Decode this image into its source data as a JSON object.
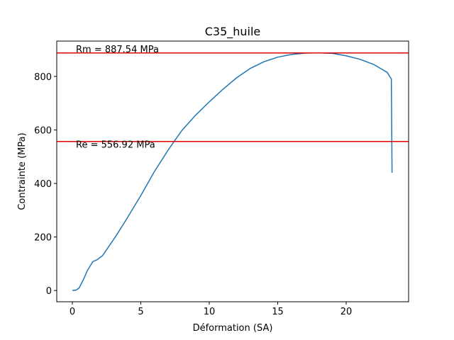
{
  "chart_data": {
    "type": "line",
    "title": "C35_huile",
    "x_label": "Déformation (SA)",
    "y_label": "Contrainte (MPa)",
    "x": [
      0,
      0.3,
      0.5,
      0.8,
      1.1,
      1.5,
      1.8,
      2.2,
      2.6,
      3.2,
      4,
      5,
      6,
      7,
      7.5,
      8,
      9,
      10,
      11,
      12,
      13,
      14,
      15,
      16,
      17,
      18,
      19,
      20,
      21,
      22,
      23,
      23.3,
      23.35
    ],
    "values": [
      0,
      2,
      10,
      40,
      75,
      108,
      115,
      130,
      160,
      205,
      270,
      355,
      445,
      525,
      562,
      598,
      655,
      705,
      752,
      795,
      830,
      855,
      872,
      882,
      887,
      888,
      886,
      877,
      864,
      845,
      815,
      790,
      440
    ],
    "color": "#1f77b4",
    "hlines": [
      {
        "value": 887.54,
        "label": "Rm = 887.54 MPa",
        "color": "#e00000"
      },
      {
        "value": 556.92,
        "label": "Re = 556.92 MPa",
        "color": "#e00000"
      }
    ],
    "xlim": [
      -1.14,
      24.56
    ],
    "ylim": [
      -42,
      932
    ],
    "xticks": [
      0,
      5,
      10,
      15,
      20
    ],
    "yticks": [
      0,
      200,
      400,
      600,
      800
    ]
  }
}
